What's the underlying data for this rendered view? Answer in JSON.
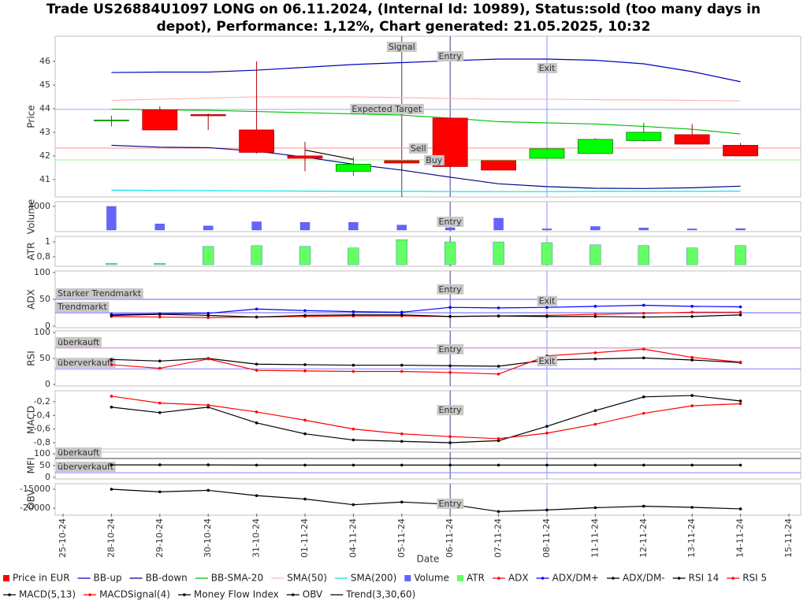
{
  "title": [
    "Trade US26884U1097 LONG on 06.11.2024, (Internal Id: 10989), Status:sold (too many days in",
    "depot), Performance: 1,12%, Chart generated: 21.05.2025, 10:32"
  ],
  "x_label": "Date",
  "categories": [
    "25-10-24",
    "28-10-24",
    "29-10-24",
    "30-10-24",
    "31-10-24",
    "01-11-24",
    "04-11-24",
    "05-11-24",
    "06-11-24",
    "07-11-24",
    "08-11-24",
    "11-11-24",
    "12-11-24",
    "13-11-24",
    "14-11-24",
    "15-11-24"
  ],
  "chart_data": [
    {
      "type": "candlestick",
      "y_label": "Price",
      "ylim": [
        40.33,
        47
      ],
      "yticks": [
        41,
        42,
        43,
        44,
        45,
        46
      ],
      "name": "Price in EUR",
      "up_color": "#00ff00",
      "down_color": "#ff0000",
      "open": [
        null,
        43.5,
        43.95,
        43.75,
        43.1,
        42.0,
        41.35,
        41.8,
        43.6,
        41.8,
        41.9,
        42.1,
        42.65,
        42.9,
        42.45,
        null
      ],
      "high": [
        null,
        43.7,
        44.1,
        43.8,
        46.0,
        42.6,
        41.95,
        41.8,
        43.6,
        41.8,
        42.35,
        42.75,
        43.4,
        43.35,
        42.55,
        null
      ],
      "low": [
        null,
        43.25,
        43.1,
        43.1,
        42.1,
        41.35,
        41.15,
        41.4,
        41.5,
        41.4,
        41.9,
        42.1,
        42.6,
        42.5,
        42.0,
        null
      ],
      "close": [
        null,
        43.52,
        43.1,
        43.7,
        42.15,
        41.9,
        41.65,
        41.7,
        41.55,
        41.4,
        42.3,
        42.7,
        43.0,
        42.5,
        42.0,
        null
      ],
      "series": [
        {
          "name": "BB-up",
          "color": "#0000c0",
          "values": [
            null,
            45.53,
            45.55,
            45.55,
            45.63,
            45.75,
            45.87,
            45.95,
            46.03,
            46.1,
            46.1,
            46.05,
            45.9,
            45.57,
            45.14,
            null
          ]
        },
        {
          "name": "BB-down",
          "color": "#00008b",
          "values": [
            null,
            42.45,
            42.37,
            42.35,
            42.2,
            41.95,
            41.65,
            41.4,
            41.1,
            40.82,
            40.7,
            40.63,
            40.62,
            40.65,
            40.72,
            null
          ]
        },
        {
          "name": "BB-SMA-20",
          "color": "#00c000",
          "values": [
            null,
            43.98,
            43.95,
            43.93,
            43.88,
            43.83,
            43.78,
            43.73,
            43.6,
            43.45,
            43.4,
            43.35,
            43.25,
            43.13,
            42.93,
            null
          ]
        },
        {
          "name": "SMA(50)",
          "color": "#ffb6b6",
          "values": [
            null,
            44.35,
            44.4,
            44.45,
            44.5,
            44.5,
            44.5,
            44.47,
            44.43,
            44.4,
            44.4,
            44.38,
            44.37,
            44.35,
            44.33,
            null
          ]
        },
        {
          "name": "SMA(200)",
          "color": "#00e5e5",
          "values": [
            null,
            40.55,
            40.54,
            40.53,
            40.52,
            40.51,
            40.5,
            40.5,
            40.49,
            40.49,
            40.49,
            40.5,
            40.5,
            40.5,
            40.51,
            null
          ]
        }
      ],
      "trend": {
        "name": "Trend(3,30,60)",
        "color": "#000000",
        "values": [
          null,
          null,
          null,
          null,
          null,
          42.25,
          41.85,
          null,
          null,
          null,
          null,
          null,
          null,
          null,
          null,
          null
        ]
      },
      "hlines": [
        {
          "label": "Expected Target",
          "value": 43.97,
          "color": "#a0a0ff",
          "x": "05-11-24"
        },
        {
          "value": 42.33,
          "color": "#ff9090"
        },
        {
          "value": 41.83,
          "color": "#90ff90"
        }
      ],
      "vlines": [
        {
          "x": "05-11-24",
          "color": "#404040"
        },
        {
          "x": "06-11-24",
          "color": "#404090"
        },
        {
          "x": "08-11-24",
          "color": "#9090ff"
        }
      ],
      "annotations": [
        {
          "text": "Signal",
          "x": "05-11-24",
          "y": 46.6
        },
        {
          "text": "Entry",
          "x": "06-11-24",
          "y": 46.2
        },
        {
          "text": "Exit",
          "x": "08-11-24",
          "y": 45.7
        },
        {
          "text": "Sell",
          "x": "05-11-24",
          "y": 42.3
        },
        {
          "text": "Buy",
          "x": "05-11-24",
          "y": 41.8
        }
      ]
    },
    {
      "type": "bar",
      "y_label": "Volume",
      "ylim": [
        0,
        4530
      ],
      "yticks": [
        4000
      ],
      "series": [
        {
          "name": "Volume",
          "color": "#6464ff",
          "values": [
            null,
            4000,
            1050,
            700,
            1400,
            1300,
            1300,
            850,
            400,
            2000,
            200,
            600,
            350,
            200,
            250,
            null
          ]
        }
      ],
      "vlines": [
        {
          "x": "06-11-24",
          "color": "#404090"
        },
        {
          "x": "08-11-24",
          "color": "#9090ff"
        }
      ],
      "annotations": [
        {
          "text": "Entry",
          "x": "06-11-24",
          "y": 1330
        }
      ]
    },
    {
      "type": "bar",
      "y_label": "ATR",
      "ylim": [
        0.695,
        1.053
      ],
      "yticks": [
        {
          "value": 0.8,
          "label": "0,8"
        },
        1
      ],
      "series": [
        {
          "name": "ATR",
          "color": "#64ff64",
          "values": [
            null,
            0.715,
            0.715,
            0.94,
            0.95,
            0.94,
            0.92,
            1.03,
            1.0,
            1.0,
            0.99,
            0.96,
            0.95,
            0.92,
            0.95,
            null
          ]
        }
      ],
      "vlines": [
        {
          "x": "06-11-24",
          "color": "#404090"
        },
        {
          "x": "08-11-24",
          "color": "#9090ff"
        }
      ]
    },
    {
      "type": "line",
      "y_label": "ADX",
      "ylim": [
        0,
        100
      ],
      "yticks": [
        0,
        50,
        100
      ],
      "series": [
        {
          "name": "ADX",
          "color": "#ff0000",
          "dots": true,
          "values": [
            null,
            18,
            17,
            16,
            17,
            18,
            19,
            19,
            18,
            19,
            20,
            22,
            24,
            26,
            26,
            null
          ]
        },
        {
          "name": "ADX/DM+",
          "color": "#0000ff",
          "dots": true,
          "values": [
            null,
            22,
            23,
            24,
            32,
            29,
            27,
            26,
            35,
            34,
            35,
            37,
            39,
            37,
            36,
            null
          ]
        },
        {
          "name": "ADX/DM-",
          "color": "#000000",
          "dots": true,
          "values": [
            null,
            20,
            22,
            20,
            17,
            20,
            21,
            21,
            18,
            19,
            18,
            18,
            17,
            18,
            21,
            null
          ]
        }
      ],
      "hlines": [
        {
          "label": "Starker Trendmarkt",
          "value": 50,
          "color": "#6060ff"
        },
        {
          "label": "Trendmarkt",
          "value": 25,
          "color": "#6060ff"
        }
      ],
      "vlines": [
        {
          "x": "06-11-24",
          "color": "#404090"
        },
        {
          "x": "08-11-24",
          "color": "#9090ff"
        }
      ],
      "annotations": [
        {
          "text": "Entry",
          "x": "06-11-24",
          "y": 68
        },
        {
          "text": "Exit",
          "x": "08-11-24",
          "y": 46
        }
      ]
    },
    {
      "type": "line",
      "y_label": "RSI",
      "ylim": [
        0,
        100
      ],
      "yticks": [
        0,
        50,
        100
      ],
      "series": [
        {
          "name": "RSI 14",
          "color": "#000000",
          "dots": true,
          "values": [
            null,
            48,
            45,
            50,
            39,
            38,
            37,
            37,
            36,
            35,
            47,
            49,
            51,
            47,
            42,
            null
          ]
        },
        {
          "name": "RSI 5",
          "color": "#ff0000",
          "dots": true,
          "values": [
            null,
            38,
            31,
            49,
            27,
            26,
            25,
            25,
            23,
            20,
            55,
            61,
            68,
            52,
            43,
            null
          ]
        }
      ],
      "hlines": [
        {
          "label": "überkauft",
          "value": 70,
          "color": "#c080c0"
        },
        {
          "label": "überverkauft",
          "value": 30,
          "color": "#8080ff"
        }
      ],
      "vlines": [
        {
          "x": "06-11-24",
          "color": "#404090"
        },
        {
          "x": "08-11-24",
          "color": "#9090ff"
        }
      ],
      "annotations": [
        {
          "text": "Entry",
          "x": "06-11-24",
          "y": 67
        },
        {
          "text": "Exit",
          "x": "08-11-24",
          "y": 44
        }
      ]
    },
    {
      "type": "line",
      "y_label": "MACD",
      "ylim": [
        -0.869,
        -0.063
      ],
      "yticks": [
        {
          "value": -0.8,
          "label": "-0,8"
        },
        {
          "value": -0.6,
          "label": "-0,6"
        },
        {
          "value": -0.4,
          "label": "-0,4"
        },
        {
          "value": -0.2,
          "label": "-0,2"
        }
      ],
      "series": [
        {
          "name": "MACD(5,13)",
          "color": "#000000",
          "dots": true,
          "values": [
            null,
            -0.28,
            -0.36,
            -0.28,
            -0.51,
            -0.67,
            -0.76,
            -0.78,
            -0.8,
            -0.77,
            -0.56,
            -0.33,
            -0.13,
            -0.11,
            -0.19,
            null
          ]
        },
        {
          "name": "MACDSignal(4)",
          "color": "#ff0000",
          "dots": true,
          "values": [
            null,
            -0.12,
            -0.22,
            -0.25,
            -0.35,
            -0.47,
            -0.6,
            -0.67,
            -0.71,
            -0.74,
            -0.66,
            -0.53,
            -0.37,
            -0.26,
            -0.23,
            null
          ]
        }
      ],
      "vlines": [
        {
          "x": "06-11-24",
          "color": "#404090"
        },
        {
          "x": "08-11-24",
          "color": "#9090ff"
        }
      ],
      "annotations": [
        {
          "text": "Entry",
          "x": "06-11-24",
          "y": -0.33
        }
      ]
    },
    {
      "type": "line",
      "y_label": "MFI",
      "ylim": [
        0,
        100
      ],
      "yticks": [
        0,
        50,
        100
      ],
      "series": [
        {
          "name": "Money Flow Index",
          "color": "#000000",
          "dots": true,
          "values": [
            null,
            53,
            53,
            53,
            52,
            52,
            52,
            52,
            52,
            52,
            52,
            52,
            52,
            52,
            52,
            null
          ]
        }
      ],
      "hlines": [
        {
          "label": "überkauft",
          "value": 80,
          "color": "#404040"
        },
        {
          "label": "überverkauft",
          "value": 20,
          "color": "#8080ff"
        }
      ],
      "vlines": [
        {
          "x": "06-11-24",
          "color": "#404090"
        },
        {
          "x": "08-11-24",
          "color": "#9090ff"
        }
      ]
    },
    {
      "type": "line",
      "y_label": "OBV",
      "ylim": [
        -21460,
        -13960
      ],
      "yticks": [
        -20000,
        -15000
      ],
      "series": [
        {
          "name": "OBV",
          "color": "#000000",
          "dots": true,
          "values": [
            null,
            -15000,
            -15700,
            -15300,
            -16700,
            -17600,
            -19100,
            -18400,
            -19000,
            -20900,
            -20500,
            -19900,
            -19500,
            -19800,
            -20200,
            null
          ]
        }
      ],
      "vlines": [
        {
          "x": "06-11-24",
          "color": "#404090"
        },
        {
          "x": "08-11-24",
          "color": "#9090ff"
        }
      ],
      "annotations": [
        {
          "text": "Entry",
          "x": "06-11-24",
          "y": -18950
        }
      ]
    }
  ]
}
